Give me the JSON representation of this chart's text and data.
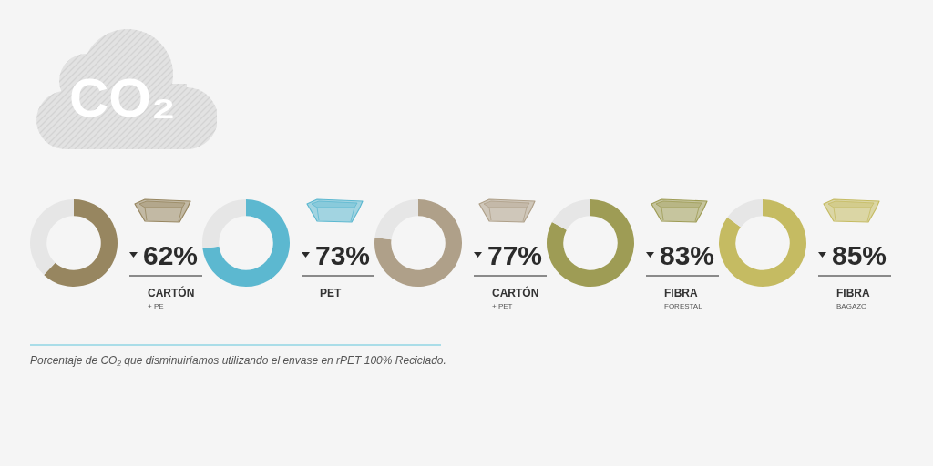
{
  "chart_data": [
    {
      "type": "donut",
      "title": "CARTÓN",
      "subtitle": "+ PE",
      "categories": [
        null,
        null
      ],
      "values": [
        62,
        38
      ],
      "colors": [
        "#978660",
        "#e6e6e6"
      ],
      "value_labels": [
        "62%",
        null
      ],
      "annotations": [
        "CO₂",
        "Porcentaje de CO₂ que disminuiríamos utilizando el envase en rPET 100% Reciclado."
      ]
    },
    {
      "type": "donut",
      "title": "PET",
      "categories": [
        null,
        null
      ],
      "values": [
        73,
        27
      ],
      "colors": [
        "#5cb8d0",
        "#e6e6e6"
      ],
      "value_labels": [
        "73%",
        null
      ]
    },
    {
      "type": "donut",
      "title": "CARTÓN",
      "subtitle": "+ PET",
      "categories": [
        null,
        null
      ],
      "values": [
        77,
        23
      ],
      "colors": [
        "#afa089",
        "#e6e6e6"
      ],
      "value_labels": [
        "77%",
        null
      ]
    },
    {
      "type": "donut",
      "title": "FIBRA",
      "subtitle": "FORESTAL",
      "categories": [
        null,
        null
      ],
      "values": [
        83,
        17
      ],
      "colors": [
        "#9e9c55",
        "#e6e6e6"
      ],
      "value_labels": [
        "83%",
        null
      ]
    },
    {
      "type": "donut",
      "title": "FIBRA",
      "subtitle": "BAGAZO",
      "categories": [
        null,
        null
      ],
      "values": [
        85,
        15
      ],
      "colors": [
        "#c5bb62",
        "#e6e6e6"
      ],
      "value_labels": [
        "85%",
        null
      ]
    }
  ]
}
